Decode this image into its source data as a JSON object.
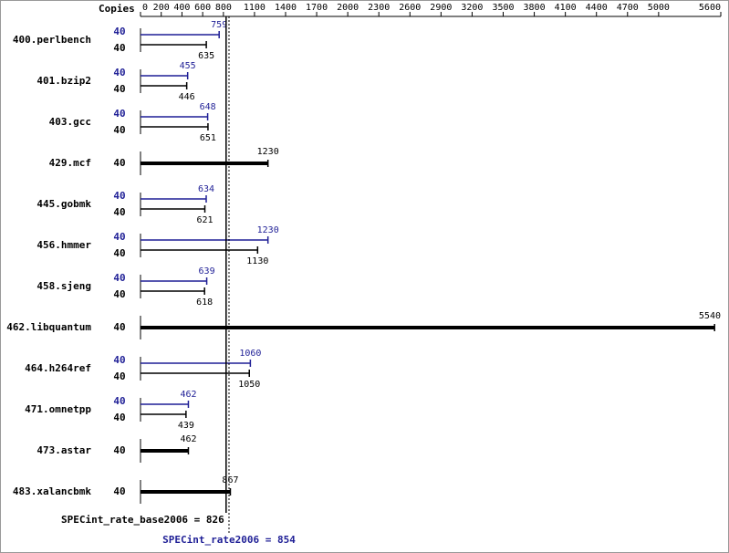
{
  "chart_data": {
    "type": "bar",
    "orientation": "horizontal",
    "copies_header": "Copies",
    "xlim": [
      0,
      5600
    ],
    "xticks": [
      0,
      200,
      400,
      600,
      800,
      1100,
      1400,
      1700,
      2000,
      2300,
      2600,
      2900,
      3200,
      3500,
      3800,
      4100,
      4400,
      4700,
      5000,
      5600
    ],
    "peak_color": "#1f1f96",
    "base_color": "#000000",
    "rows": [
      {
        "label": "400.perlbench",
        "peak": {
          "copies": 40,
          "value": 759
        },
        "base": {
          "copies": 40,
          "value": 635
        }
      },
      {
        "label": "401.bzip2",
        "peak": {
          "copies": 40,
          "value": 455
        },
        "base": {
          "copies": 40,
          "value": 446
        }
      },
      {
        "label": "403.gcc",
        "peak": {
          "copies": 40,
          "value": 648
        },
        "base": {
          "copies": 40,
          "value": 651
        }
      },
      {
        "label": "429.mcf",
        "copies": 40,
        "value": 1230
      },
      {
        "label": "445.gobmk",
        "peak": {
          "copies": 40,
          "value": 634
        },
        "base": {
          "copies": 40,
          "value": 621
        }
      },
      {
        "label": "456.hmmer",
        "peak": {
          "copies": 40,
          "value": 1230
        },
        "base": {
          "copies": 40,
          "value": 1130
        }
      },
      {
        "label": "458.sjeng",
        "peak": {
          "copies": 40,
          "value": 639
        },
        "base": {
          "copies": 40,
          "value": 618
        }
      },
      {
        "label": "462.libquantum",
        "copies": 40,
        "value": 5540
      },
      {
        "label": "464.h264ref",
        "peak": {
          "copies": 40,
          "value": 1060
        },
        "base": {
          "copies": 40,
          "value": 1050
        }
      },
      {
        "label": "471.omnetpp",
        "peak": {
          "copies": 40,
          "value": 462
        },
        "base": {
          "copies": 40,
          "value": 439
        }
      },
      {
        "label": "473.astar",
        "copies": 40,
        "value": 462
      },
      {
        "label": "483.xalancbmk",
        "copies": 40,
        "value": 867
      }
    ],
    "base_reference": {
      "label": "SPECint_rate_base2006 = 826",
      "value": 826
    },
    "peak_reference": {
      "label": "SPECint_rate2006 = 854",
      "value": 854
    }
  }
}
